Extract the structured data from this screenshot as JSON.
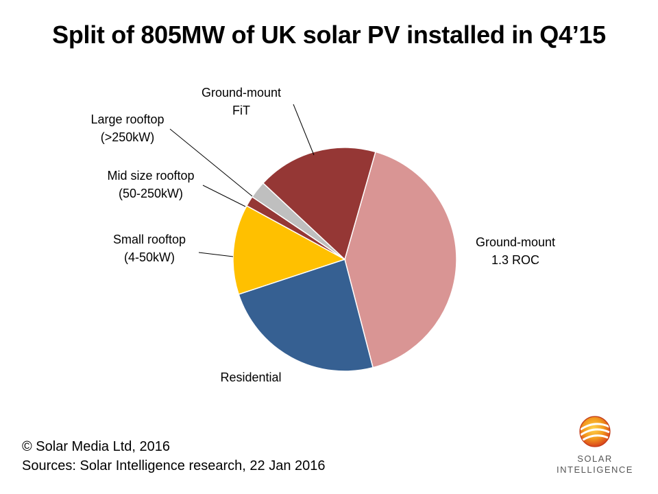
{
  "title": "Split of 805MW of UK solar PV installed in Q4’15",
  "chart_data": {
    "type": "pie",
    "title": "Split of 805MW of UK solar PV installed in Q4’15",
    "slices": [
      {
        "lines": [
          "Ground-mount",
          "1.3 ROC"
        ],
        "value": 41.5,
        "color": "#d99594"
      },
      {
        "lines": [
          "Residential"
        ],
        "value": 24.0,
        "color": "#366092"
      },
      {
        "lines": [
          "Small rooftop",
          "(4-50kW)"
        ],
        "value": 13.0,
        "color": "#ffc000"
      },
      {
        "lines": [
          "Mid size rooftop",
          "(50-250kW)"
        ],
        "value": 1.5,
        "color": "#953735"
      },
      {
        "lines": [
          "Large rooftop",
          "(>250kW)"
        ],
        "value": 2.5,
        "color": "#bfbfbf"
      },
      {
        "lines": [
          "Ground-mount",
          "FiT"
        ],
        "value": 17.5,
        "color": "#953735"
      }
    ]
  },
  "footer": {
    "copyright": "© Solar Media Ltd, 2016",
    "sources": "Sources: Solar Intelligence research, 22 Jan 2016"
  },
  "logo": {
    "line1": "SOLAR",
    "line2": "INTELLIGENCE",
    "icon": "sun-spiral-icon"
  }
}
